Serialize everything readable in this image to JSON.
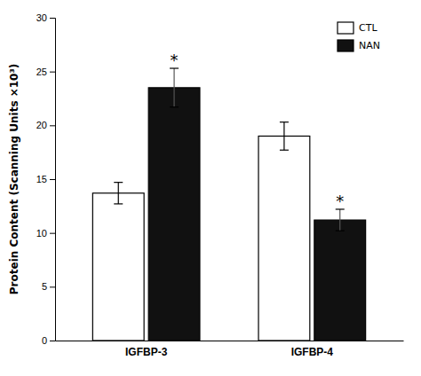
{
  "chart_data": {
    "type": "bar",
    "categories": [
      "IGFBP-3",
      "IGFBP-4"
    ],
    "ylabel": "Protein Content (Scanning Units ×10³)",
    "ylim": [
      0,
      30
    ],
    "yticks": [
      0,
      5,
      10,
      15,
      20,
      25,
      30
    ],
    "legend": "upper right",
    "grid": false,
    "series": [
      {
        "name": "CTL",
        "color": "#ffffff",
        "values": [
          13.7,
          19.0
        ],
        "errors": [
          1.0,
          1.3
        ]
      },
      {
        "name": "NAN",
        "color": "#111111",
        "values": [
          23.5,
          11.2
        ],
        "errors": [
          1.8,
          1.0
        ],
        "annotations": [
          "*",
          "*"
        ]
      }
    ]
  }
}
